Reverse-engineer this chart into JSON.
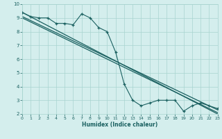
{
  "xlabel": "Humidex (Indice chaleur)",
  "bg_color": "#d4eeed",
  "grid_color": "#a8d4d0",
  "line_color": "#1a6060",
  "xlim": [
    0,
    23
  ],
  "ylim": [
    2,
    10
  ],
  "yticks": [
    2,
    3,
    4,
    5,
    6,
    7,
    8,
    9,
    10
  ],
  "xticks": [
    0,
    1,
    2,
    3,
    4,
    5,
    6,
    7,
    8,
    9,
    10,
    11,
    12,
    13,
    14,
    15,
    16,
    17,
    18,
    19,
    20,
    21,
    22,
    23
  ],
  "series1_x": [
    0,
    1,
    2,
    3,
    4,
    5,
    6,
    7,
    8,
    9,
    10,
    11,
    12,
    13,
    14,
    15,
    16,
    17,
    18,
    19,
    20,
    21,
    22,
    23
  ],
  "series1_y": [
    9.4,
    9.1,
    9.0,
    9.0,
    8.6,
    8.6,
    8.5,
    9.3,
    9.0,
    8.3,
    8.0,
    6.5,
    4.2,
    3.0,
    2.6,
    2.8,
    3.0,
    3.0,
    3.0,
    2.2,
    2.6,
    2.8,
    2.6,
    2.4
  ],
  "line1_x": [
    0,
    23
  ],
  "line1_y": [
    9.4,
    2.0
  ],
  "line2_x": [
    0,
    23
  ],
  "line2_y": [
    9.0,
    2.1
  ],
  "line3_x": [
    0,
    23
  ],
  "line3_y": [
    9.1,
    2.3
  ]
}
